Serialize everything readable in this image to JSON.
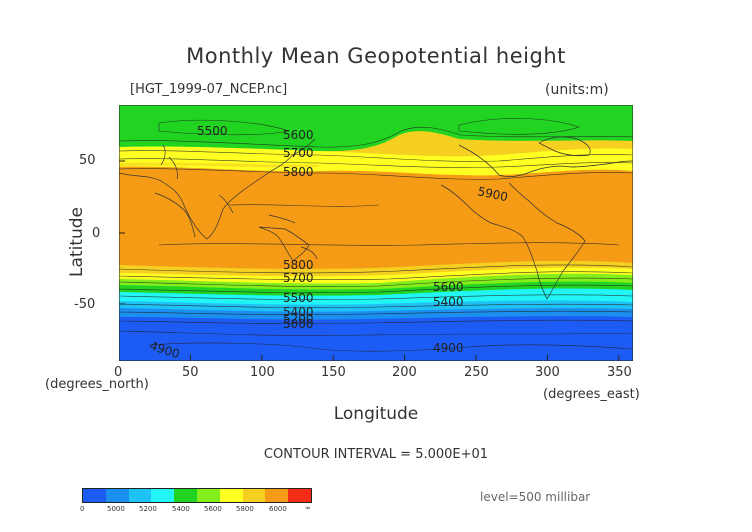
{
  "title": "Monthly Mean Geopotential height",
  "file_label": "[HGT_1999-07_NCEP.nc]",
  "units_label": "(units:m)",
  "y_axis_label": "Latitude",
  "x_axis_label": "Longitude",
  "x_unit_left": "(degrees_north)",
  "x_unit_right": "(degrees_east)",
  "contour_interval": "CONTOUR INTERVAL = 5.000E+01",
  "level": "level=500 millibar",
  "x_ticks": [
    "0",
    "50",
    "100",
    "150",
    "200",
    "250",
    "300",
    "350"
  ],
  "y_ticks": [
    "50",
    "0",
    "-50"
  ],
  "contour_labels": [
    "5500",
    "5600",
    "5700",
    "5800",
    "5900",
    "5800",
    "5700",
    "5600",
    "5400",
    "5500",
    "5400",
    "5200",
    "5000",
    "4900",
    "4900"
  ],
  "colorbar_ticks": [
    "0",
    "5000",
    "5200",
    "5400",
    "5600",
    "5800",
    "6000",
    "∞"
  ],
  "colors": {
    "deep_blue": "#1c5cf5",
    "blue": "#1a8ff0",
    "light_blue": "#1fc2f5",
    "cyan": "#21f5f5",
    "green": "#21d421",
    "light_green": "#84ee1a",
    "yellow": "#ffff22",
    "gold": "#f5d021",
    "orange": "#f59b16",
    "red": "#f52d16"
  }
}
